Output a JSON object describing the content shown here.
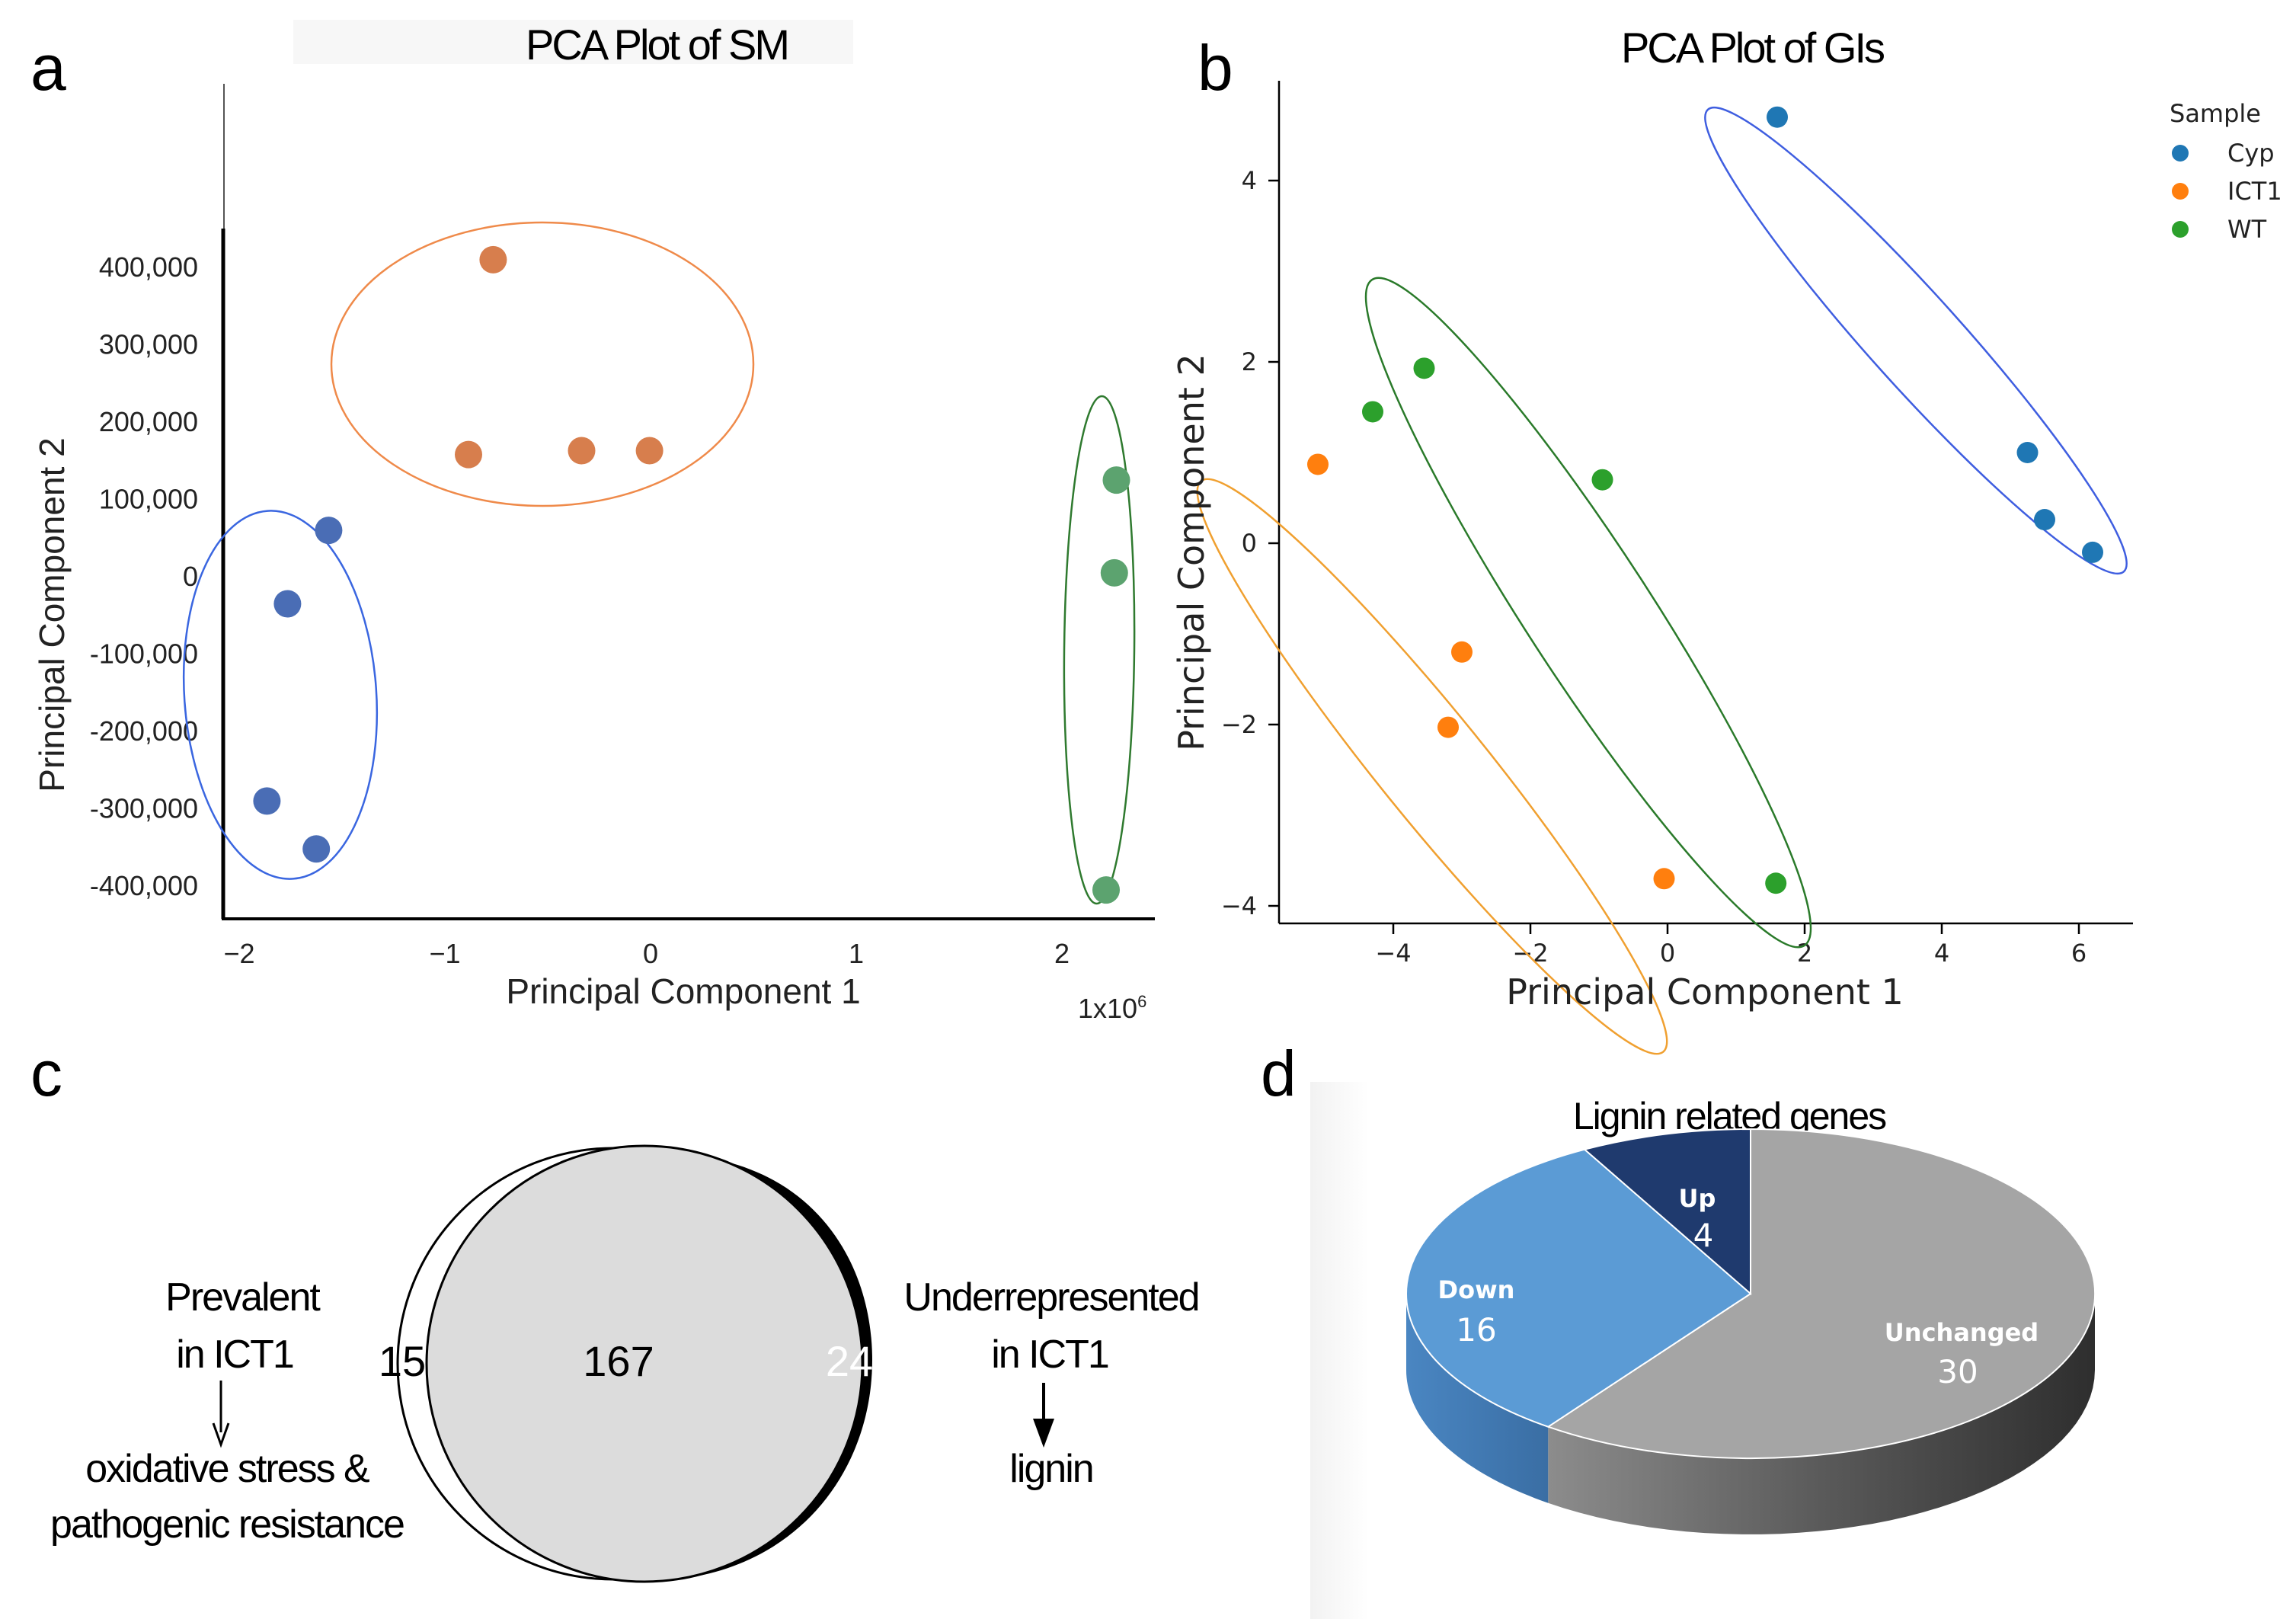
{
  "panels": {
    "a": "a",
    "b": "b",
    "c": "c",
    "d": "d"
  },
  "chart_data": [
    {
      "id": "pca_sm",
      "type": "scatter",
      "title": "PCA Plot of SM",
      "xlabel": "Principal Component 1",
      "ylabel": "Principal Component 2",
      "x_scale_note": "1x10",
      "x_scale_exp": "6",
      "xlim": [
        -2.1,
        2.45
      ],
      "ylim": [
        -445000,
        445000
      ],
      "xticks": [
        -2,
        -1,
        0,
        1,
        2
      ],
      "xtick_labels": [
        "−2",
        "−1",
        "0",
        "1",
        "2"
      ],
      "yticks": [
        400000,
        300000,
        200000,
        100000,
        0,
        -100000,
        -200000,
        -300000,
        -400000
      ],
      "ytick_labels": [
        "400,000",
        "300,000",
        "200,000",
        "100,000",
        "0",
        "-100,000",
        "-200,000",
        "-300,000",
        "-400,000"
      ],
      "series": [
        {
          "name": "blue group",
          "color": "#4a6db5",
          "ellipse_color": "#3a66e0",
          "points": [
            [
              -1.58,
              60000
            ],
            [
              -1.78,
              -35000
            ],
            [
              -1.88,
              -290000
            ],
            [
              -1.64,
              -352000
            ]
          ]
        },
        {
          "name": "orange group",
          "color": "#d77e4d",
          "ellipse_color": "#ef8a4a",
          "points": [
            [
              -0.78,
              410000
            ],
            [
              -0.9,
              158000
            ],
            [
              -0.35,
              163000
            ],
            [
              -0.02,
              163000
            ]
          ]
        },
        {
          "name": "green group",
          "color": "#5ca36f",
          "ellipse_color": "#3a8a3a",
          "points": [
            [
              2.25,
              125000
            ],
            [
              2.24,
              5000
            ],
            [
              2.2,
              -405000
            ]
          ]
        }
      ]
    },
    {
      "id": "pca_gls",
      "type": "scatter",
      "title": "PCA Plot of GIs",
      "xlabel": "Principal Component 1",
      "ylabel": "Principal Component 2",
      "xlim": [
        -5.6,
        6.8
      ],
      "ylim": [
        -4.2,
        5.2
      ],
      "xticks": [
        -4,
        -2,
        0,
        2,
        4,
        6
      ],
      "xtick_labels": [
        "−4",
        "−2",
        "0",
        "2",
        "4",
        "6"
      ],
      "yticks": [
        4,
        2,
        0,
        -2,
        -4
      ],
      "ytick_labels": [
        "4",
        "2",
        "0",
        "−2",
        "−4"
      ],
      "legend_title": "Sample",
      "series": [
        {
          "name": "Cyp",
          "color": "#1f77b4",
          "ellipse_color": "#3f5ee0",
          "points": [
            [
              1.6,
              4.7
            ],
            [
              5.25,
              1.0
            ],
            [
              5.5,
              0.26
            ],
            [
              6.2,
              -0.1
            ]
          ]
        },
        {
          "name": "ICT1",
          "color": "#ff7f0e",
          "ellipse_color": "#f0a030",
          "points": [
            [
              -5.1,
              0.87
            ],
            [
              -3.0,
              -1.2
            ],
            [
              -3.2,
              -2.03
            ],
            [
              -0.05,
              -3.7
            ]
          ]
        },
        {
          "name": "WT",
          "color": "#2ca02c",
          "ellipse_color": "#2a7a2a",
          "points": [
            [
              -3.55,
              1.93
            ],
            [
              -4.3,
              1.45
            ],
            [
              -0.95,
              0.7
            ],
            [
              1.58,
              -3.75
            ]
          ]
        }
      ]
    },
    {
      "id": "venn",
      "type": "venn",
      "left_only": "15",
      "overlap": "167",
      "right_only": "24",
      "left_label_1": "Prevalent",
      "left_label_2": "in ICT1",
      "left_note_1": "oxidative stress &",
      "left_note_2": "pathogenic resistance",
      "right_label_1": "Underrepresented",
      "right_label_2": "in ICT1",
      "right_note": "lignin"
    },
    {
      "id": "lignin_pie",
      "type": "pie",
      "title": "Lignin related genes",
      "slices": [
        {
          "label": "Unchanged",
          "value": 30,
          "color": "#a5a5a5",
          "side": "#6a6a6a"
        },
        {
          "label": "Down",
          "value": 16,
          "color": "#5b9bd5",
          "side": "#3f72a8"
        },
        {
          "label": "Up",
          "value": 4,
          "color": "#1f3a6e",
          "side": "#13264a"
        }
      ]
    }
  ]
}
